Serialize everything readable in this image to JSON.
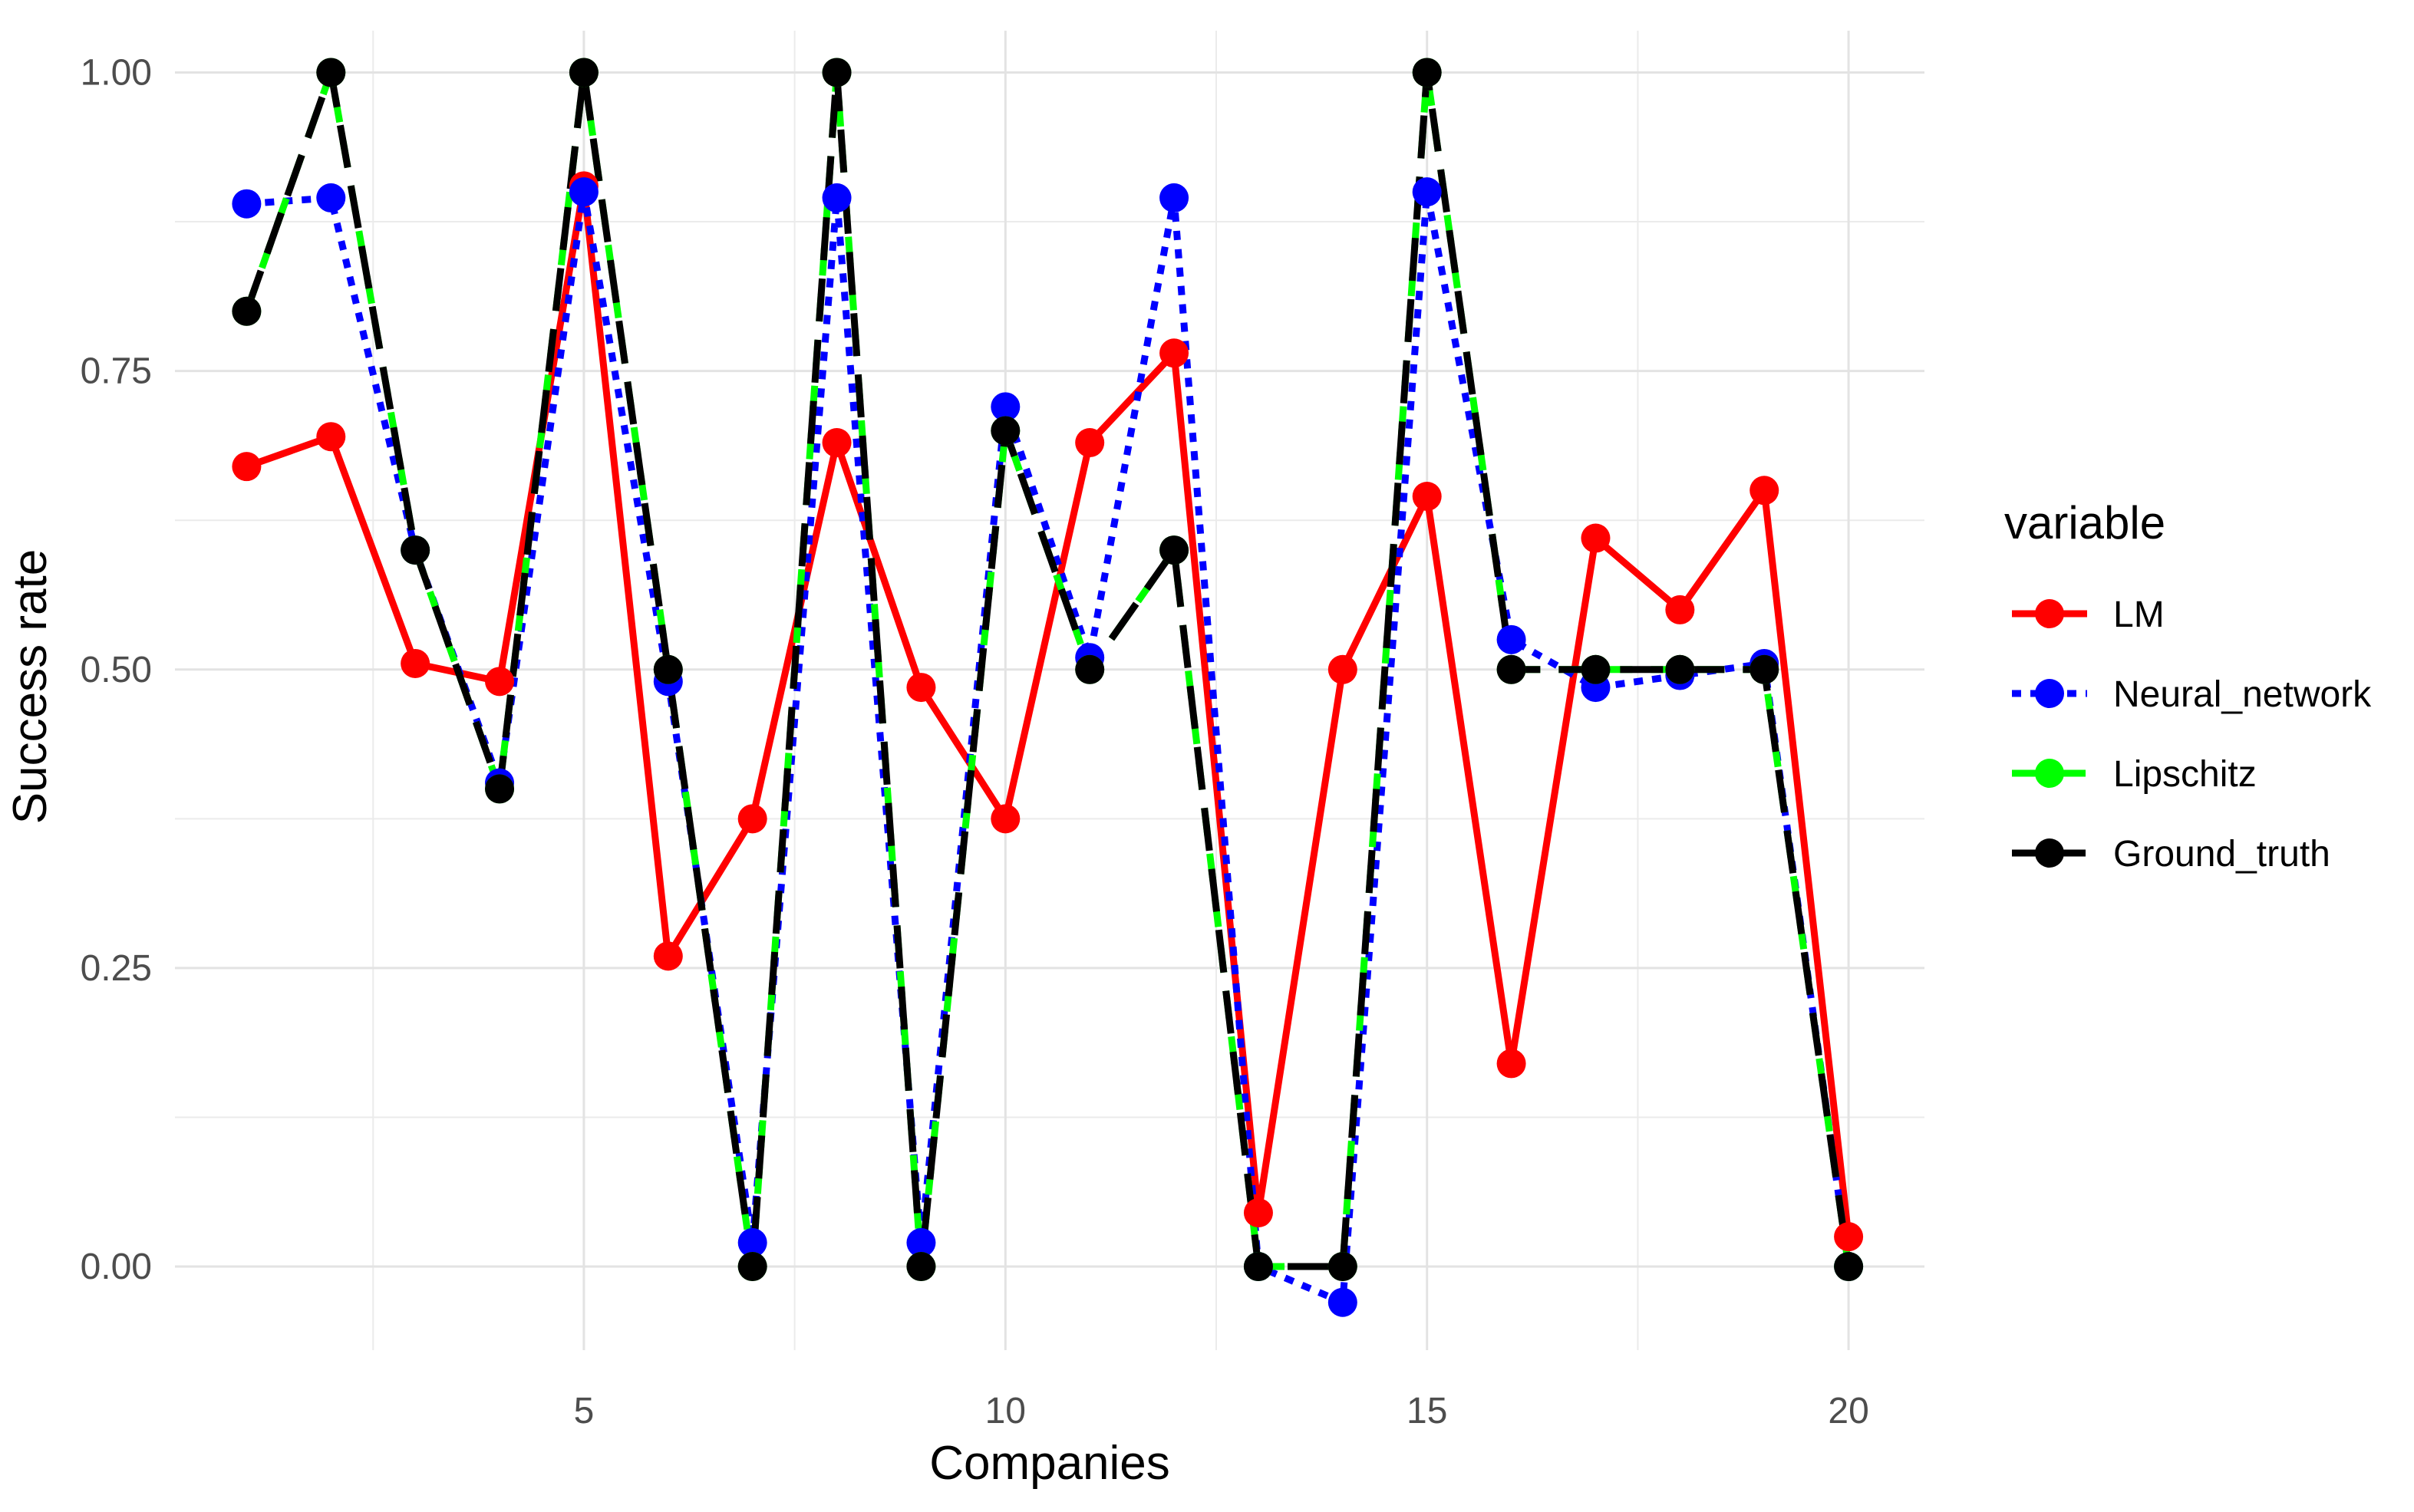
{
  "chart_data": {
    "type": "line",
    "xlabel": "Companies",
    "ylabel": "Success rate",
    "x": [
      1,
      2,
      3,
      4,
      5,
      6,
      7,
      8,
      9,
      10,
      11,
      12,
      13,
      14,
      15,
      16,
      17,
      18,
      19,
      20
    ],
    "xlim": [
      0.15,
      20.9
    ],
    "ylim": [
      -0.07,
      1.035
    ],
    "x_ticks": [
      5,
      10,
      15,
      20
    ],
    "x_tick_labels": [
      "5",
      "10",
      "15",
      "20"
    ],
    "y_ticks": [
      0,
      0.25,
      0.5,
      0.75,
      1.0
    ],
    "y_tick_labels": [
      "0.00",
      "0.25",
      "0.50",
      "0.75",
      "1.00"
    ],
    "grid": true,
    "legend": {
      "title": "variable",
      "position": "right",
      "entries": [
        "LM",
        "Neural_network",
        "Lipschitz",
        "Ground_truth"
      ]
    },
    "series": [
      {
        "name": "LM",
        "color": "#ff0000",
        "line_style": "solid",
        "values": [
          0.67,
          0.695,
          0.505,
          0.49,
          0.905,
          0.26,
          0.375,
          0.69,
          0.485,
          0.375,
          0.69,
          0.765,
          0.045,
          0.5,
          0.645,
          0.17,
          0.61,
          0.55,
          0.65,
          0.025
        ]
      },
      {
        "name": "Neural_network",
        "color": "#0000ff",
        "line_style": "dotted",
        "values": [
          0.89,
          0.895,
          0.6,
          0.405,
          0.9,
          0.49,
          0.02,
          0.895,
          0.02,
          0.72,
          0.51,
          0.895,
          0.0,
          -0.03,
          0.9,
          0.525,
          0.485,
          0.495,
          0.505,
          0.0
        ]
      },
      {
        "name": "Lipschitz",
        "color": "#00ff00",
        "line_style": "dashed",
        "values": [
          0.8,
          1.0,
          0.6,
          0.4,
          1.0,
          0.5,
          0.0,
          1.0,
          0.0,
          0.7,
          0.5,
          0.6,
          0.0,
          0.0,
          1.0,
          0.5,
          0.5,
          0.5,
          0.5,
          0.0
        ]
      },
      {
        "name": "Ground_truth",
        "color": "#000000",
        "line_style": "longdash",
        "values": [
          0.8,
          1.0,
          0.6,
          0.4,
          1.0,
          0.5,
          0.0,
          1.0,
          0.0,
          0.7,
          0.5,
          0.6,
          0.0,
          0.0,
          1.0,
          0.5,
          0.5,
          0.5,
          0.5,
          0.0
        ]
      }
    ]
  }
}
